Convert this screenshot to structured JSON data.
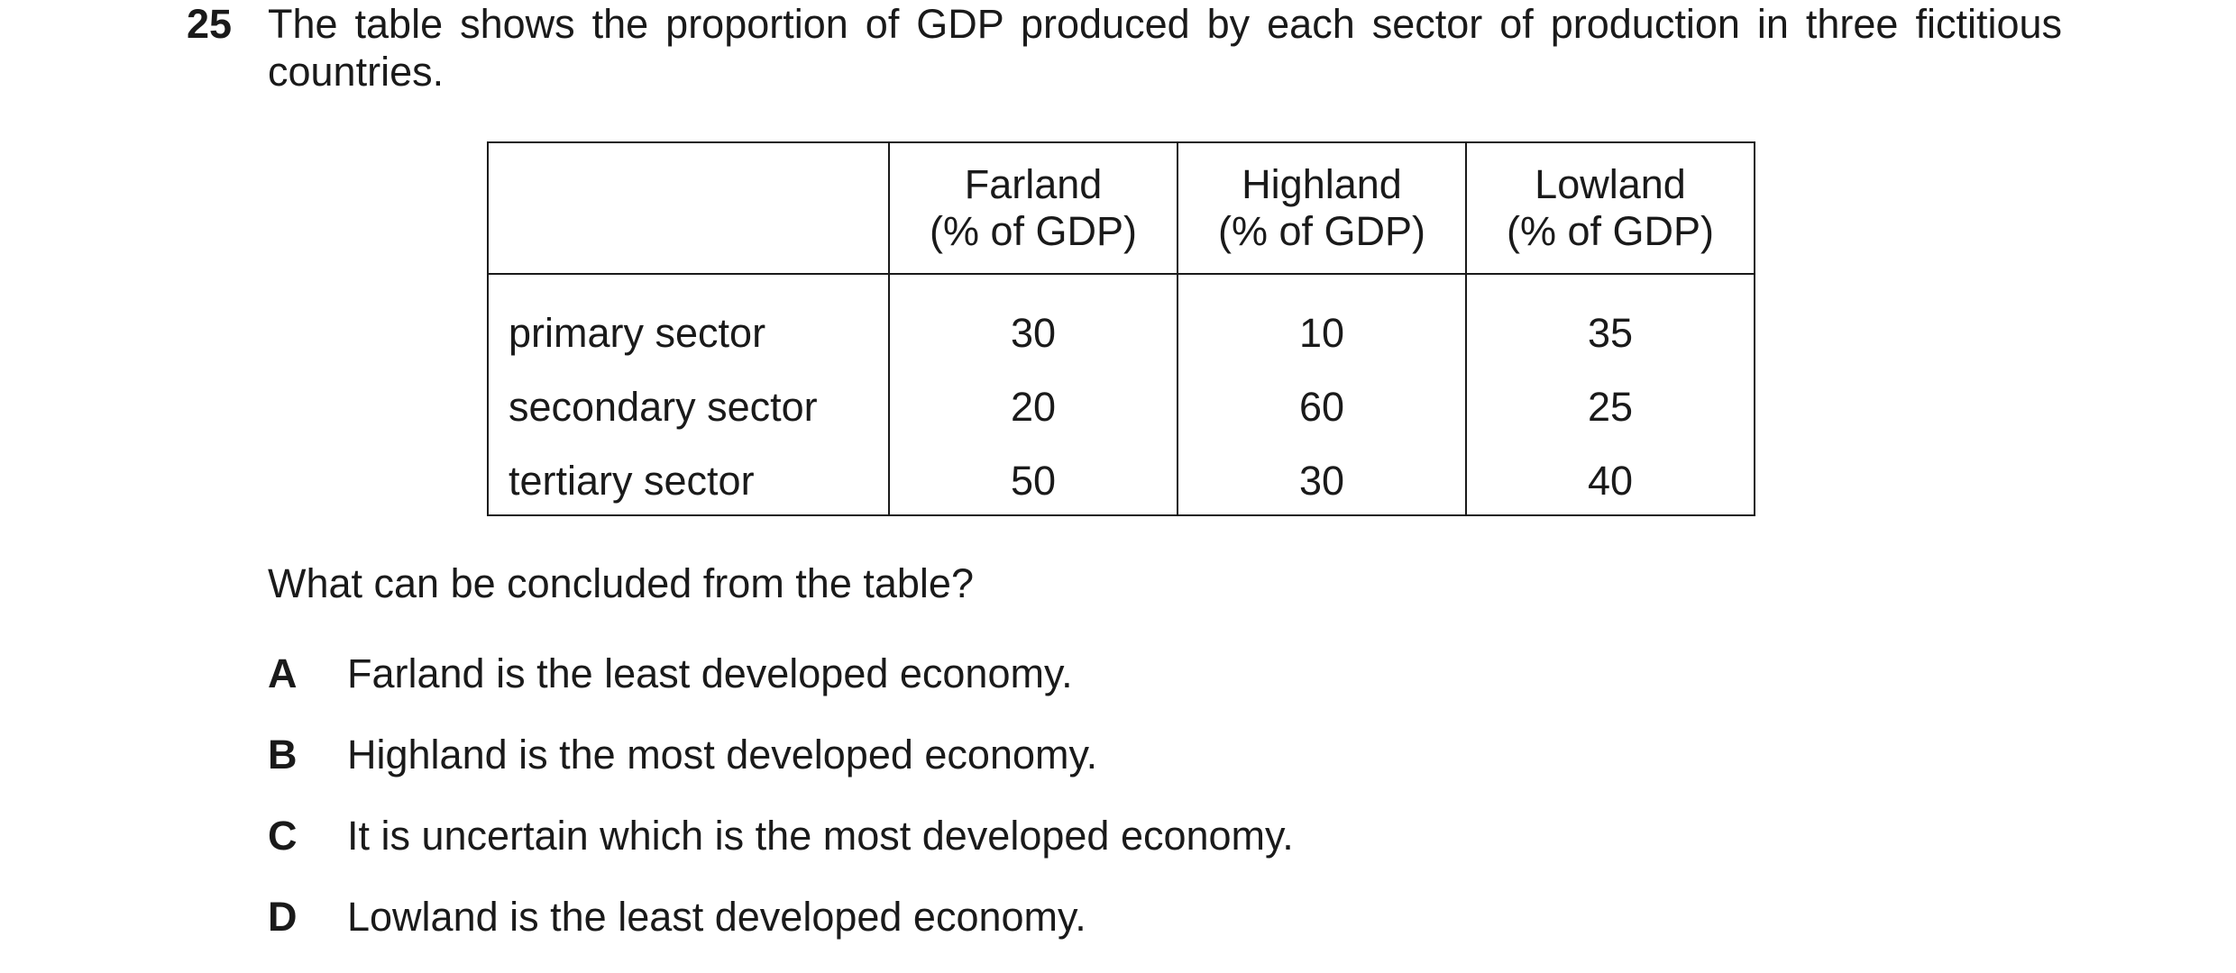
{
  "question": {
    "number": "25",
    "stem": "The table shows the proportion of GDP produced by each sector of production in three fictitious countries.",
    "prompt": "What can be concluded from the table?"
  },
  "table": {
    "columns": [
      {
        "name": "Farland",
        "unit": "(% of GDP)"
      },
      {
        "name": "Highland",
        "unit": "(% of GDP)"
      },
      {
        "name": "Lowland",
        "unit": "(% of GDP)"
      }
    ],
    "rows": [
      {
        "label": "primary sector",
        "values": [
          "30",
          "10",
          "35"
        ]
      },
      {
        "label": "secondary sector",
        "values": [
          "20",
          "60",
          "25"
        ]
      },
      {
        "label": "tertiary sector",
        "values": [
          "50",
          "30",
          "40"
        ]
      }
    ]
  },
  "options": [
    {
      "letter": "A",
      "text": "Farland is the least developed economy."
    },
    {
      "letter": "B",
      "text": "Highland is the most developed economy."
    },
    {
      "letter": "C",
      "text": "It is uncertain which is the most developed economy."
    },
    {
      "letter": "D",
      "text": "Lowland is the least developed economy."
    }
  ]
}
